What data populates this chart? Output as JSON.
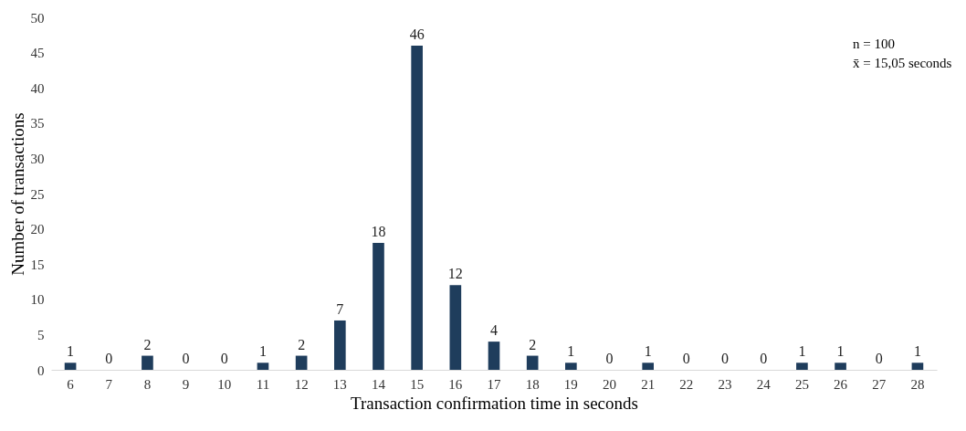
{
  "chart_data": {
    "type": "bar",
    "xlabel": "Transaction confirmation time in seconds",
    "ylabel": "Number of transactions",
    "categories": [
      "6",
      "7",
      "8",
      "9",
      "10",
      "11",
      "12",
      "13",
      "14",
      "15",
      "16",
      "17",
      "18",
      "19",
      "20",
      "21",
      "22",
      "23",
      "24",
      "25",
      "26",
      "27",
      "28"
    ],
    "values": [
      1,
      0,
      2,
      0,
      0,
      1,
      2,
      7,
      18,
      46,
      12,
      4,
      2,
      1,
      0,
      1,
      0,
      0,
      0,
      1,
      1,
      0,
      1
    ],
    "color": "#1f3d5c",
    "ylim": [
      0,
      50
    ],
    "yticks": [
      0,
      5,
      10,
      15,
      20,
      25,
      30,
      35,
      40,
      45,
      50
    ],
    "grid": false,
    "data_labels": true,
    "annotations": [
      "n = 100",
      "x̄ = 15,05 seconds"
    ]
  }
}
